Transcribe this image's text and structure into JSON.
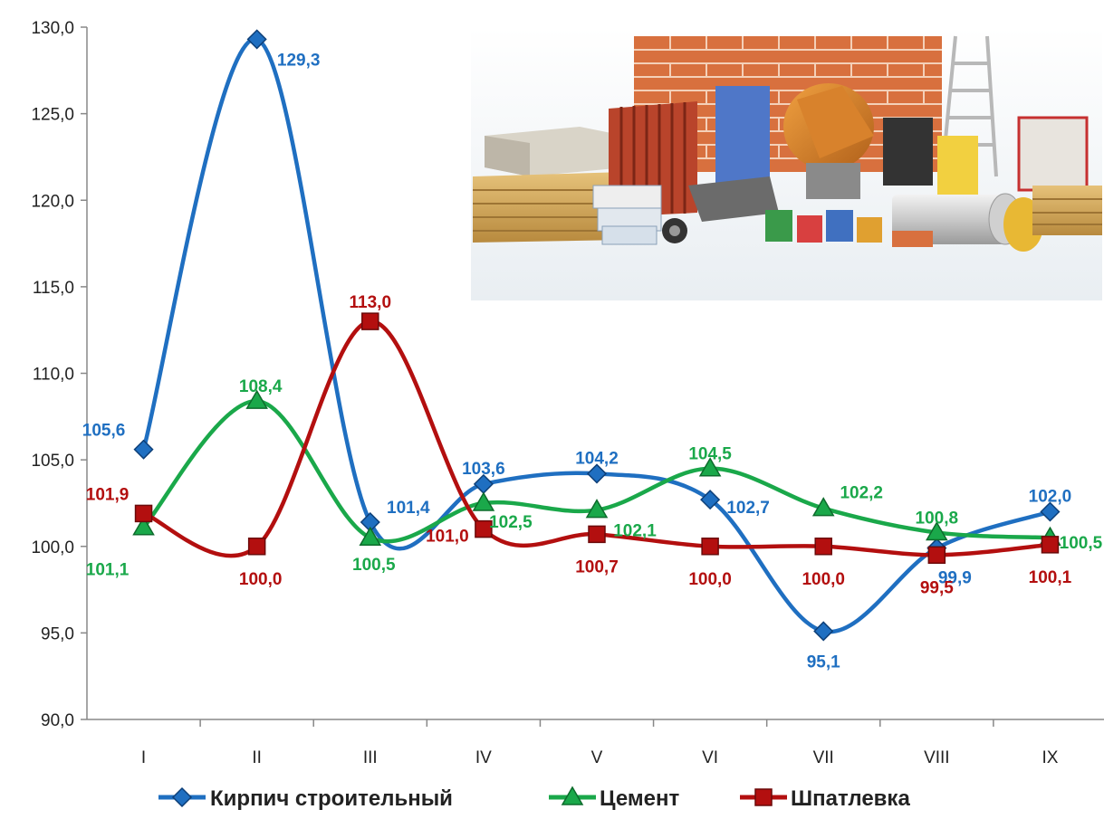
{
  "chart_data": {
    "type": "line",
    "title": "",
    "xlabel": "",
    "ylabel": "",
    "categories": [
      "I",
      "II",
      "III",
      "IV",
      "V",
      "VI",
      "VII",
      "VIII",
      "IX"
    ],
    "ylim": [
      90,
      130
    ],
    "yticks": [
      "90,0",
      "95,0",
      "100,0",
      "105,0",
      "110,0",
      "115,0",
      "120,0",
      "125,0",
      "130,0"
    ],
    "grid": false,
    "legend_position": "bottom",
    "series": [
      {
        "name": "Кирпич строительный",
        "color": "#1f6fc1",
        "marker": "diamond",
        "values": [
          105.6,
          129.3,
          101.4,
          103.6,
          104.2,
          102.7,
          95.1,
          99.9,
          102.0
        ],
        "labels": [
          "105,6",
          "129,3",
          "101,4",
          "103,6",
          "104,2",
          "102,7",
          "95,1",
          "99,9",
          "102,0"
        ]
      },
      {
        "name": "Цемент",
        "color": "#1aa84a",
        "marker": "triangle",
        "values": [
          101.1,
          108.4,
          100.5,
          102.5,
          102.1,
          104.5,
          102.2,
          100.8,
          100.5
        ],
        "labels": [
          "101,1",
          "108,4",
          "100,5",
          "102,5",
          "102,1",
          "104,5",
          "102,2",
          "100,8",
          "100,5"
        ]
      },
      {
        "name": "Шпатлевка",
        "color": "#b30f0f",
        "marker": "square",
        "values": [
          101.9,
          100.0,
          113.0,
          101.0,
          100.7,
          100.0,
          100.0,
          99.5,
          100.1
        ],
        "labels": [
          "101,9",
          "100,0",
          "113,0",
          "101,0",
          "100,7",
          "100,0",
          "100,0",
          "99,5",
          "100,1"
        ]
      }
    ],
    "image": {
      "name": "construction-materials-photo"
    }
  }
}
